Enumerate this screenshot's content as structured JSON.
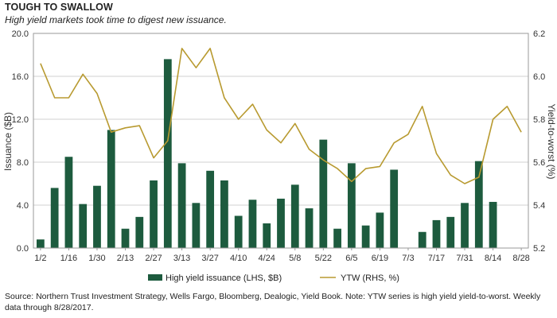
{
  "title": "TOUGH TO SWALLOW",
  "subtitle": "High yield markets took time to digest new issuance.",
  "source": "Source: Northern Trust Investment Strategy, Wells Fargo, Bloomberg, Dealogic, Yield Book. Note: YTW series is high yield yield-to-worst. Weekly data through 8/28/2017.",
  "colors": {
    "bars": "#1d5b3e",
    "line": "#b89a30",
    "grid": "#d0d0d0"
  },
  "chart_data": {
    "type": "bar+line",
    "x": [
      "1/2",
      "1/9",
      "1/16",
      "1/23",
      "1/30",
      "2/6",
      "2/13",
      "2/20",
      "2/27",
      "3/6",
      "3/13",
      "3/20",
      "3/27",
      "4/3",
      "4/10",
      "4/17",
      "4/24",
      "5/1",
      "5/8",
      "5/15",
      "5/22",
      "5/29",
      "6/5",
      "6/12",
      "6/19",
      "6/26",
      "7/3",
      "7/10",
      "7/17",
      "7/24",
      "7/31",
      "8/7",
      "8/14",
      "8/21",
      "8/28"
    ],
    "x_tick_labels": [
      "1/2",
      "1/16",
      "1/30",
      "2/13",
      "2/27",
      "3/13",
      "3/27",
      "4/10",
      "4/24",
      "5/8",
      "5/22",
      "6/5",
      "6/19",
      "7/3",
      "7/17",
      "7/31",
      "8/14",
      "8/28"
    ],
    "series": [
      {
        "name": "High yield issuance (LHS, $B)",
        "type": "bar",
        "axis": "left",
        "values": [
          0.8,
          5.6,
          8.5,
          4.1,
          5.8,
          11.0,
          1.8,
          2.9,
          6.3,
          17.6,
          7.9,
          4.2,
          7.2,
          6.3,
          3.0,
          4.5,
          2.3,
          4.6,
          5.9,
          3.7,
          10.1,
          1.8,
          7.9,
          2.1,
          3.3,
          7.3,
          0,
          1.5,
          2.6,
          2.9,
          4.2,
          8.1,
          4.3,
          0,
          0
        ]
      },
      {
        "name": "YTW (RHS, %)",
        "type": "line",
        "axis": "right",
        "values": [
          6.06,
          5.9,
          5.9,
          6.01,
          5.92,
          5.74,
          5.76,
          5.77,
          5.62,
          5.7,
          6.13,
          6.04,
          6.13,
          5.9,
          5.8,
          5.87,
          5.75,
          5.69,
          5.78,
          5.66,
          5.61,
          5.57,
          5.51,
          5.57,
          5.58,
          5.69,
          5.73,
          5.86,
          5.64,
          5.54,
          5.5,
          5.53,
          5.8,
          5.86,
          5.74
        ]
      }
    ],
    "y_left": {
      "label": "Issuance ($B)",
      "min": 0,
      "max": 20,
      "ticks": [
        "0.0",
        "4.0",
        "8.0",
        "12.0",
        "16.0",
        "20.0"
      ]
    },
    "y_right": {
      "label": "Yield-to-worst (%)",
      "min": 5.2,
      "max": 6.2,
      "ticks": [
        "5.2",
        "5.4",
        "5.6",
        "5.8",
        "6.0",
        "6.2"
      ]
    },
    "grid": true,
    "legend": "bottom-center"
  }
}
